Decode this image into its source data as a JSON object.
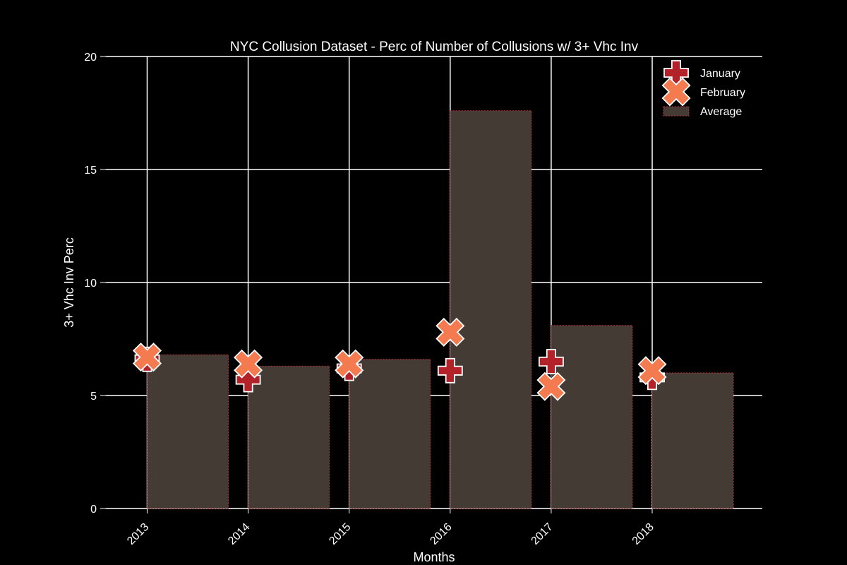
{
  "chart_data": {
    "type": "bar",
    "title": "NYC Collusion Dataset - Perc of Number of Collusions w/ 3+ Vhc Inv",
    "xlabel": "Months",
    "ylabel": "3+ Vhc Inv Perc",
    "categories": [
      "2013",
      "2014",
      "2015",
      "2016",
      "2017",
      "2018"
    ],
    "ylim": [
      0,
      20
    ],
    "yticks": [
      0,
      5,
      10,
      15,
      20
    ],
    "grid": true,
    "legend_position": "top-right",
    "series": [
      {
        "name": "January",
        "kind": "marker",
        "marker": "plus",
        "color": "#b22228",
        "values": [
          6.6,
          5.7,
          6.2,
          6.1,
          6.5,
          5.8
        ]
      },
      {
        "name": "February",
        "kind": "marker",
        "marker": "x",
        "color": "#f47a4f",
        "values": [
          6.7,
          6.4,
          6.4,
          7.8,
          5.4,
          6.1
        ]
      },
      {
        "name": "Average",
        "kind": "bar",
        "color": "#433b34",
        "edge_color": "#c03040",
        "values": [
          6.8,
          6.3,
          6.6,
          17.6,
          8.1,
          6.0
        ]
      }
    ]
  }
}
